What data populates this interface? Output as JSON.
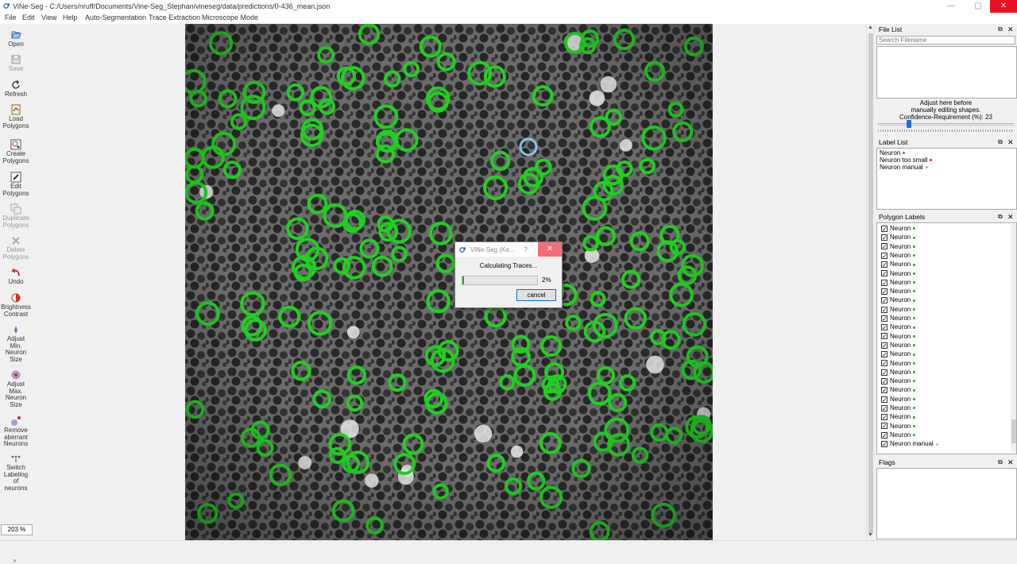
{
  "window": {
    "title": "ViNe-Seg - C:/Users/nruff/Documents/Vine-Seg_Stephan/vineseg/data/predictions/0-436_mean.json",
    "minimize": "—",
    "maximize": "▢",
    "close": "✕"
  },
  "menu": [
    "File",
    "Edit",
    "View",
    "Help",
    "Auto-Segmentation",
    "Trace Extraction",
    "Microscope Mode"
  ],
  "toolbar": {
    "open": "Open",
    "save": "Save",
    "refresh": "Refresh",
    "load_polygons": [
      "Load",
      "Polygons"
    ],
    "create_polygons": [
      "Create",
      "Polygons"
    ],
    "edit_polygons": [
      "Edit",
      "Polygons"
    ],
    "duplicate_polygons": [
      "Duplicate",
      "Polygons"
    ],
    "delete_polygons": [
      "Delete",
      "Polygons"
    ],
    "undo": "Undo",
    "brightness_contrast": [
      "Brightness",
      "Contrast"
    ],
    "adjust_min": [
      "Adjust",
      "Min.",
      "Neuron",
      "Size"
    ],
    "adjust_max": [
      "Adjust",
      "Max.",
      "Neuron",
      "Size"
    ],
    "remove_aberrant": [
      "Remove",
      "aberrant",
      "Neurons"
    ],
    "switch_labeling": [
      "Switch",
      "Labeling",
      "of",
      "neurons"
    ],
    "zoom": "203 %",
    "more": "»"
  },
  "file_list": {
    "title": "File List",
    "search_placeholder": "Search Filename",
    "adjust_text": [
      "Adjust here before",
      "manually editing shapes."
    ],
    "confidence_label": "Confidence-Requirement (%): 23",
    "confidence_value": 23
  },
  "label_list": {
    "title": "Label List",
    "items": [
      {
        "label": "Neuron",
        "color": "#22aa22"
      },
      {
        "label": "Neuron too small",
        "color": "#dd2222"
      },
      {
        "label": "Neuron manual",
        "color": "#7ec8e3"
      }
    ]
  },
  "polygon_labels": {
    "title": "Polygon Labels",
    "items": [
      {
        "label": "Neuron",
        "color": "#22aa22",
        "checked": true
      },
      {
        "label": "Neuron",
        "color": "#22aa22",
        "checked": true
      },
      {
        "label": "Neuron",
        "color": "#22aa22",
        "checked": true
      },
      {
        "label": "Neuron",
        "color": "#22aa22",
        "checked": true
      },
      {
        "label": "Neuron",
        "color": "#22aa22",
        "checked": true
      },
      {
        "label": "Neuron",
        "color": "#22aa22",
        "checked": true
      },
      {
        "label": "Neuron",
        "color": "#22aa22",
        "checked": true
      },
      {
        "label": "Neuron",
        "color": "#22aa22",
        "checked": true
      },
      {
        "label": "Neuron",
        "color": "#22aa22",
        "checked": true
      },
      {
        "label": "Neuron",
        "color": "#22aa22",
        "checked": true
      },
      {
        "label": "Neuron",
        "color": "#22aa22",
        "checked": true
      },
      {
        "label": "Neuron",
        "color": "#22aa22",
        "checked": true
      },
      {
        "label": "Neuron",
        "color": "#22aa22",
        "checked": true
      },
      {
        "label": "Neuron",
        "color": "#22aa22",
        "checked": true
      },
      {
        "label": "Neuron",
        "color": "#22aa22",
        "checked": true
      },
      {
        "label": "Neuron",
        "color": "#22aa22",
        "checked": true
      },
      {
        "label": "Neuron",
        "color": "#22aa22",
        "checked": true
      },
      {
        "label": "Neuron",
        "color": "#22aa22",
        "checked": true
      },
      {
        "label": "Neuron",
        "color": "#22aa22",
        "checked": true
      },
      {
        "label": "Neuron",
        "color": "#22aa22",
        "checked": true
      },
      {
        "label": "Neuron",
        "color": "#22aa22",
        "checked": true
      },
      {
        "label": "Neuron",
        "color": "#22aa22",
        "checked": true
      },
      {
        "label": "Neuron",
        "color": "#22aa22",
        "checked": true
      },
      {
        "label": "Neuron",
        "color": "#22aa22",
        "checked": true
      },
      {
        "label": "Neuron manual",
        "color": "#7ec8e3",
        "checked": true
      }
    ]
  },
  "flags": {
    "title": "Flags"
  },
  "dialog": {
    "title": "ViNe-Seg (Ke...",
    "help": "?",
    "close": "✕",
    "message": "Calculating Traces...",
    "progress_percent": 2,
    "progress_text": "2%",
    "cancel": "cancel"
  }
}
